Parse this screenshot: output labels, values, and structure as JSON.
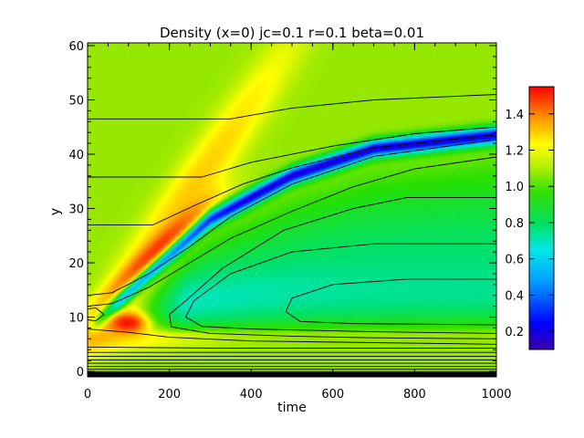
{
  "chart_data": {
    "type": "heatmap",
    "title": "Density (x=0) jc=0.1 r=0.1 beta=0.01",
    "xlabel": "time",
    "ylabel": "y",
    "xlim": [
      0,
      1000
    ],
    "ylim": [
      -1,
      60.5
    ],
    "x_ticks": [
      "0",
      "200",
      "400",
      "600",
      "800",
      "1000"
    ],
    "x_tick_values": [
      0,
      200,
      400,
      600,
      800,
      1000
    ],
    "y_ticks": [
      "0",
      "10",
      "20",
      "30",
      "40",
      "50",
      "60"
    ],
    "y_tick_values": [
      0,
      10,
      20,
      30,
      40,
      50,
      60
    ],
    "colorbar": {
      "range": [
        0.1,
        1.55
      ],
      "ticks": [
        "0.2",
        "0.4",
        "0.6",
        "0.8",
        "1.0",
        "1.2",
        "1.4"
      ],
      "tick_values": [
        0.2,
        0.4,
        0.6,
        0.8,
        1.0,
        1.2,
        1.4
      ],
      "colormap": "rainbow"
    },
    "field_description": {
      "background_value": 0.95,
      "dense_wave_peak": 1.25,
      "depletion_band_min": 0.15,
      "depletion_band_path": [
        [
          150,
          18
        ],
        [
          300,
          28
        ],
        [
          500,
          36
        ],
        [
          700,
          41
        ],
        [
          1000,
          43.5
        ]
      ],
      "cavity_value": 0.55,
      "cavity_center": [
        600,
        12
      ],
      "hotspot": {
        "x": 100,
        "y": 9,
        "value": 1.35
      },
      "bottom_layer_y": [
        0,
        3
      ]
    },
    "contours": [
      {
        "level": "y~46",
        "points": [
          [
            0,
            46.5
          ],
          [
            350,
            46.5
          ],
          [
            500,
            48.5
          ],
          [
            700,
            50
          ],
          [
            1000,
            51
          ]
        ]
      },
      {
        "level": "y~35",
        "points": [
          [
            0,
            35.8
          ],
          [
            280,
            35.8
          ],
          [
            400,
            38.5
          ],
          [
            600,
            41.5
          ],
          [
            800,
            43.8
          ],
          [
            1000,
            45
          ]
        ]
      },
      {
        "level": "y~26",
        "points": [
          [
            0,
            27
          ],
          [
            160,
            27
          ],
          [
            260,
            30.5
          ],
          [
            380,
            34.5
          ],
          [
            500,
            37.5
          ],
          [
            700,
            41.2
          ],
          [
            1000,
            43.6
          ]
        ]
      },
      {
        "level": "band-upper",
        "points": [
          [
            0,
            14
          ],
          [
            60,
            14.5
          ],
          [
            150,
            18
          ],
          [
            250,
            23
          ],
          [
            350,
            28.5
          ],
          [
            500,
            34.5
          ],
          [
            700,
            39.6
          ],
          [
            1000,
            42.7
          ]
        ]
      },
      {
        "level": "band-lower",
        "points": [
          [
            0,
            12
          ],
          [
            60,
            12.5
          ],
          [
            150,
            15.5
          ],
          [
            250,
            20
          ],
          [
            350,
            24.5
          ],
          [
            500,
            29.5
          ],
          [
            650,
            34
          ],
          [
            800,
            37.3
          ],
          [
            1000,
            39.5
          ]
        ]
      },
      {
        "level": "cavity-outer",
        "points": [
          [
            1000,
            32
          ],
          [
            780,
            32
          ],
          [
            650,
            30
          ],
          [
            480,
            26
          ],
          [
            330,
            19
          ],
          [
            240,
            13
          ],
          [
            200,
            10.5
          ],
          [
            205,
            8.2
          ],
          [
            300,
            7
          ],
          [
            500,
            6.5
          ],
          [
            700,
            6.2
          ],
          [
            1000,
            6
          ]
        ]
      },
      {
        "level": "cavity-mid",
        "points": [
          [
            1000,
            23.5
          ],
          [
            700,
            23.5
          ],
          [
            500,
            22
          ],
          [
            350,
            18
          ],
          [
            260,
            13
          ],
          [
            240,
            10
          ],
          [
            280,
            8.3
          ],
          [
            400,
            7.8
          ],
          [
            700,
            7.3
          ],
          [
            1000,
            7
          ]
        ]
      },
      {
        "level": "cavity-inner",
        "points": [
          [
            1000,
            17
          ],
          [
            780,
            17
          ],
          [
            600,
            16
          ],
          [
            500,
            13.5
          ],
          [
            485,
            11
          ],
          [
            520,
            9.2
          ],
          [
            650,
            8.8
          ],
          [
            1000,
            8.6
          ]
        ]
      },
      {
        "level": "left-loop",
        "points": [
          [
            0,
            11.5
          ],
          [
            20,
            11.7
          ],
          [
            40,
            10.5
          ],
          [
            20,
            9.3
          ],
          [
            0,
            9.5
          ]
        ]
      },
      {
        "level": "low-1",
        "points": [
          [
            0,
            7.8
          ],
          [
            100,
            7.2
          ],
          [
            200,
            6.3
          ],
          [
            400,
            5.6
          ],
          [
            700,
            5.3
          ],
          [
            1000,
            5
          ]
        ]
      },
      {
        "level": "low-2",
        "points": [
          [
            0,
            4.5
          ],
          [
            300,
            4.3
          ],
          [
            1000,
            4.3
          ]
        ]
      },
      {
        "level": "low-3",
        "points": [
          [
            0,
            3.5
          ],
          [
            1000,
            3.5
          ]
        ]
      },
      {
        "level": "low-4",
        "points": [
          [
            0,
            2.8
          ],
          [
            1000,
            2.8
          ]
        ]
      },
      {
        "level": "low-5",
        "points": [
          [
            0,
            2.1
          ],
          [
            1000,
            2.1
          ]
        ]
      },
      {
        "level": "low-6",
        "points": [
          [
            0,
            1.5
          ],
          [
            1000,
            1.5
          ]
        ]
      },
      {
        "level": "low-7",
        "points": [
          [
            0,
            0.9
          ],
          [
            1000,
            0.9
          ]
        ]
      },
      {
        "level": "low-8",
        "points": [
          [
            0,
            0.4
          ],
          [
            1000,
            0.4
          ]
        ]
      }
    ]
  }
}
